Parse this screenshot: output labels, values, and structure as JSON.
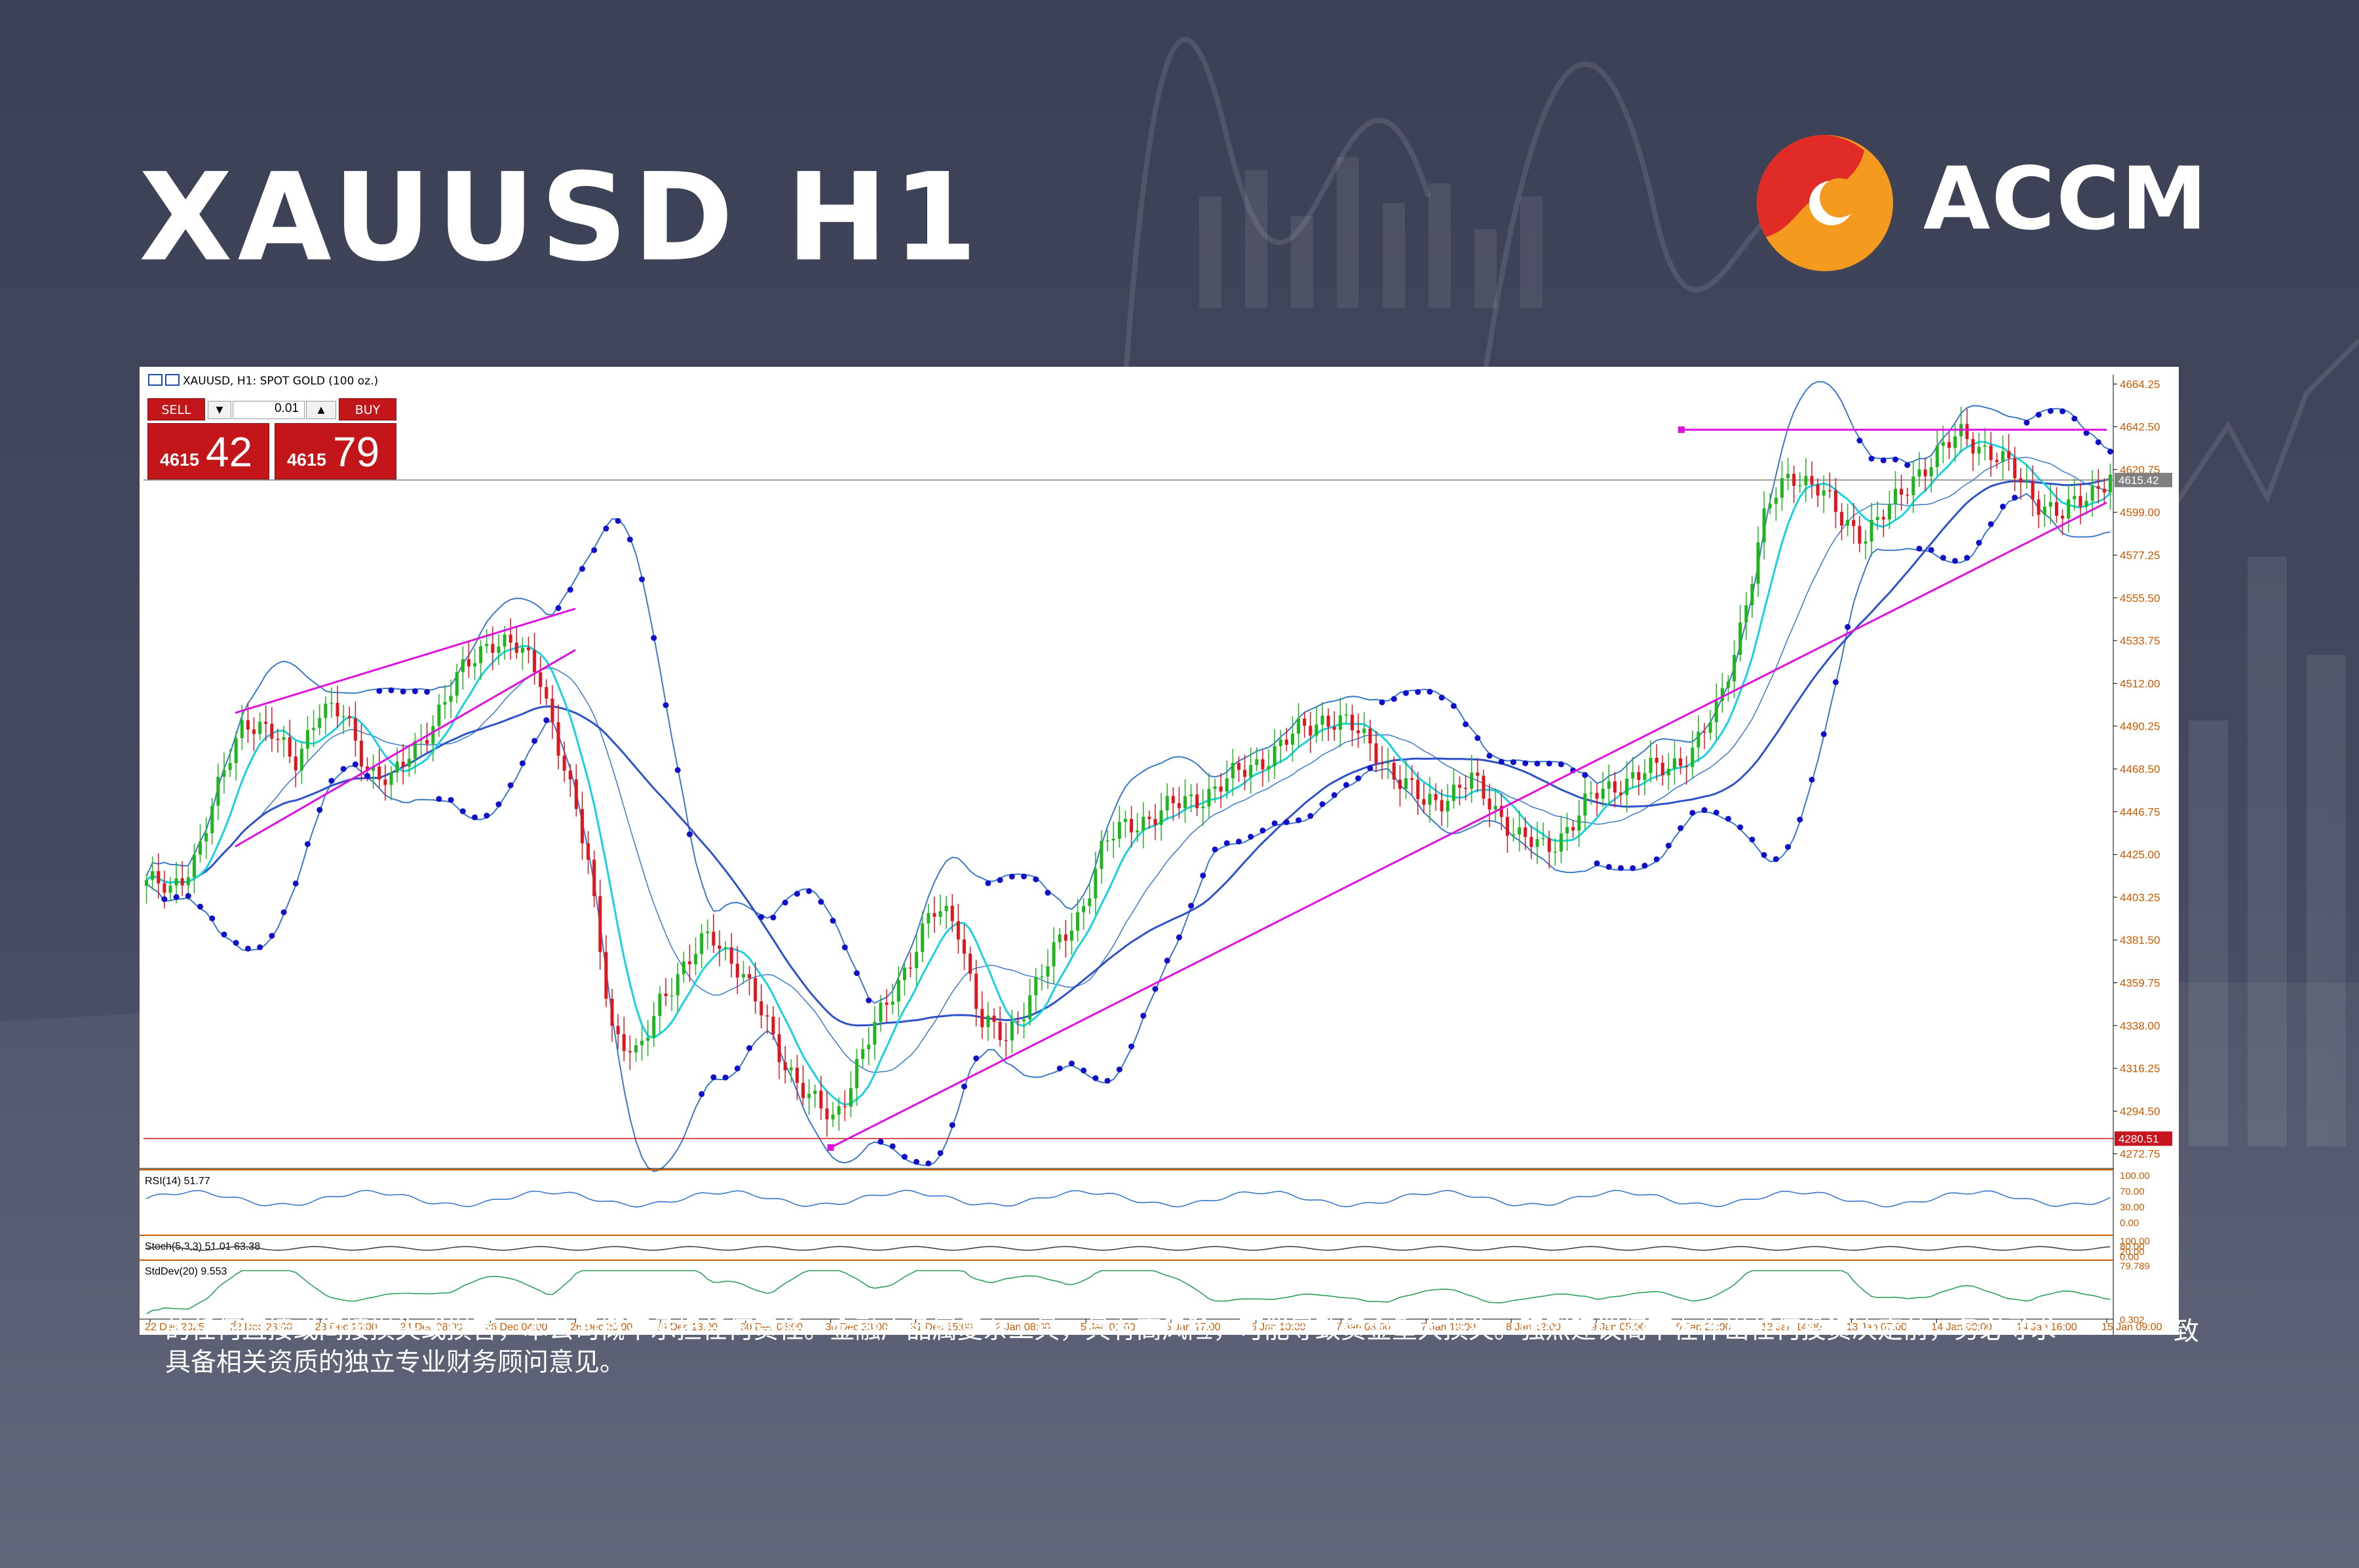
{
  "header": {
    "title": "XAUUSD H1",
    "brand_name": "ACCM"
  },
  "colors": {
    "background": "#41465b",
    "logo_red": "#e02b26",
    "logo_orange": "#f39a1f",
    "bull_candle": "#1fb51f",
    "bear_candle": "#e0161e",
    "parabolic_sar": "#0f0fcc",
    "fast_ma": "#18d2e0",
    "slow_ma": "#2e52c8",
    "bollinger": "#3a78c8",
    "trendline": "#e010e0",
    "axis_text": "#c85a00",
    "level_line": "#c8141e"
  },
  "trade_panel": {
    "sell_label": "SELL",
    "buy_label": "BUY",
    "lot_size": "0.01",
    "sell_price_prefix": "4615",
    "sell_price_suffix": "42",
    "buy_price_prefix": "4615",
    "buy_price_suffix": "79"
  },
  "disclaimer": {
    "visible_tail": "致",
    "line2": "的任何直接或间接损失或损害，本公司概不承担任何责任。金融产品属复杂工具，具有高风险，可能导致资金重大损失。强烈建议阁下在作出任何投资决定前，务必寻求",
    "line3": "具备相关资质的独立专业财务顾问意见。"
  },
  "chart_data": {
    "type": "candlestick",
    "symbol": "XAUUSD",
    "title": "XAUUSD, H1:  SPOT GOLD (100 oz.)",
    "ylim": [
      4266,
      4669
    ],
    "y_ticks": [
      4664.25,
      4642.5,
      4620.75,
      4599.0,
      4577.25,
      4555.5,
      4533.75,
      4512.0,
      4490.25,
      4468.5,
      4446.75,
      4425.0,
      4403.25,
      4381.5,
      4359.75,
      4338.0,
      4316.25,
      4294.5,
      4272.75
    ],
    "x_labels": [
      "22 Dec 2025",
      "22 Dec 23:00",
      "23 Dec 15:00",
      "24 Dec 08:00",
      "26 Dec 04:00",
      "26 Dec 20:00",
      "29 Dec 13:00",
      "30 Dec 06:00",
      "30 Dec 23:00",
      "31 Dec 15:00",
      "2 Jan 08:00",
      "5 Jan 01:00",
      "5 Jan 17:00",
      "6 Jan 10:00",
      "7 Jan 03:00",
      "7 Jan 19:00",
      "8 Jan 12:00",
      "9 Jan 05:00",
      "9 Jan 21:00",
      "12 Jan 14:00",
      "13 Jan 07:00",
      "14 Jan 00:00",
      "14 Jan 16:00",
      "15 Jan 09:00"
    ],
    "current_price": 4615.42,
    "support_level": 4280.51,
    "price_waypoints": [
      4412,
      4405,
      4425,
      4460,
      4495,
      4488,
      4470,
      4500,
      4495,
      4470,
      4462,
      4480,
      4500,
      4520,
      4535,
      4530,
      4518,
      4470,
      4420,
      4335,
      4320,
      4355,
      4368,
      4385,
      4370,
      4345,
      4320,
      4300,
      4290,
      4320,
      4345,
      4370,
      4395,
      4392,
      4340,
      4330,
      4355,
      4375,
      4395,
      4430,
      4440,
      4445,
      4450,
      4455,
      4462,
      4470,
      4478,
      4488,
      4495,
      4490,
      4480,
      4462,
      4452,
      4455,
      4462,
      4448,
      4432,
      4428,
      4440,
      4455,
      4462,
      4466,
      4470,
      4478,
      4498,
      4545,
      4600,
      4620,
      4612,
      4596,
      4588,
      4600,
      4618,
      4628,
      4640,
      4630,
      4620,
      4606,
      4596,
      4608,
      4618
    ],
    "indicators": {
      "moving_averages": [
        "fast MA (cyan)",
        "slow MA (blue)"
      ],
      "bollinger_bands": true,
      "parabolic_sar": true
    },
    "trendlines": [
      {
        "label": "ascending channel top",
        "points": [
          [
            "22 Dec 23:00",
            4497
          ],
          [
            "26 Dec 20:00",
            4550
          ]
        ]
      },
      {
        "label": "ascending channel bottom",
        "points": [
          [
            "22 Dec 23:00",
            4429
          ],
          [
            "26 Dec 20:00",
            4529
          ]
        ]
      },
      {
        "label": "long support trendline",
        "points": [
          [
            "30 Dec 23:00",
            4276
          ],
          [
            "15 Jan 09:00",
            4604
          ]
        ]
      },
      {
        "label": "resistance",
        "points": [
          [
            "9 Jan 21:00",
            4641
          ],
          [
            "15 Jan 09:00",
            4641
          ]
        ]
      }
    ],
    "subpanels": [
      {
        "label": "RSI(14) 51.77",
        "ticks": [
          "100.00",
          "70.00",
          "30.00",
          "0.00"
        ]
      },
      {
        "label": "Stoch(5,3,3) 51.01 63.38",
        "ticks": [
          "100.00",
          "80.00",
          "20.00",
          "0.00"
        ]
      },
      {
        "label": "StdDev(20) 9.553",
        "ticks": [
          "79.789",
          "0.302"
        ]
      }
    ],
    "grid": false
  }
}
